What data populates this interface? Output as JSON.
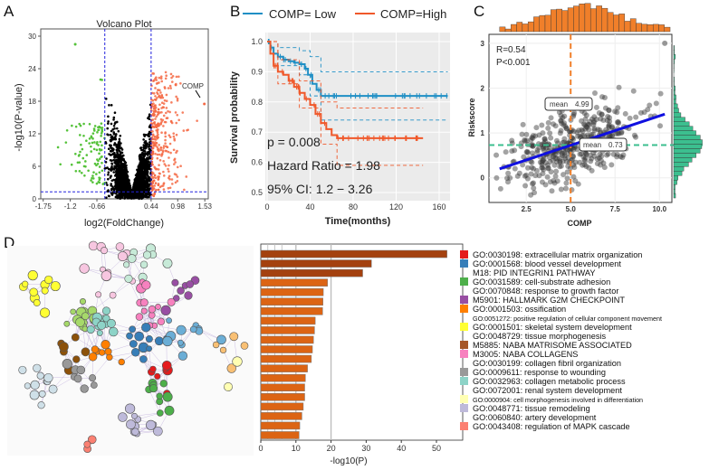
{
  "panels": {
    "A": "A",
    "B": "B",
    "C": "C",
    "D": "D"
  },
  "chart_data": [
    {
      "type": "scatter",
      "title": "Volcano Plot",
      "xlabel": "log2(FoldChange)",
      "ylabel": "-log10(P-value)",
      "xticks": [
        "-1.75",
        "-1.2",
        "-0.66",
        "0.44",
        "0.98",
        "1.53"
      ],
      "xtick_values": [
        -1.75,
        -1.2,
        -0.66,
        0.44,
        0.98,
        1.53
      ],
      "yticks": [
        "0",
        "6",
        "12",
        "18",
        "24",
        "30"
      ],
      "xlim": [
        -1.8,
        1.6
      ],
      "ylim": [
        0,
        30
      ],
      "thresholds": {
        "x": [
          -0.5,
          0.44
        ],
        "y": 1.3
      },
      "annotation": "COMP",
      "colors": {
        "down": "#55c23a",
        "ns": "#000000",
        "up": "#f46a45",
        "threshold": "#2222dd"
      }
    },
    {
      "type": "line",
      "xlabel": "Time(months)",
      "ylabel": "Survival probability",
      "xticks": [
        "0",
        "40",
        "80",
        "120",
        "160"
      ],
      "yticks": [
        "0.5",
        "0.6",
        "0.7",
        "0.8",
        "0.9",
        "1.0"
      ],
      "xlim": [
        0,
        168
      ],
      "ylim": [
        0.5,
        1.0
      ],
      "series": [
        {
          "name": "COMP= Low",
          "color": "#1f8fc5",
          "x": [
            0,
            3,
            6,
            10,
            15,
            20,
            25,
            30,
            35,
            38,
            42,
            46,
            50,
            168
          ],
          "y": [
            1.0,
            0.98,
            0.96,
            0.95,
            0.94,
            0.935,
            0.93,
            0.925,
            0.91,
            0.89,
            0.86,
            0.84,
            0.82,
            0.82
          ],
          "ci_upper": [
            [
              0,
              1.0
            ],
            [
              10,
              0.98
            ],
            [
              30,
              0.97
            ],
            [
              40,
              0.95
            ],
            [
              50,
              0.9
            ],
            [
              168,
              0.9
            ]
          ],
          "ci_lower": [
            [
              0,
              1.0
            ],
            [
              10,
              0.92
            ],
            [
              30,
              0.89
            ],
            [
              40,
              0.82
            ],
            [
              50,
              0.74
            ],
            [
              168,
              0.74
            ]
          ]
        },
        {
          "name": "COMP=High",
          "color": "#f0582a",
          "x": [
            0,
            3,
            6,
            10,
            15,
            20,
            25,
            30,
            35,
            40,
            45,
            50,
            55,
            60,
            65,
            145
          ],
          "y": [
            1.0,
            0.96,
            0.92,
            0.9,
            0.89,
            0.87,
            0.85,
            0.83,
            0.81,
            0.79,
            0.76,
            0.73,
            0.71,
            0.69,
            0.68,
            0.68
          ],
          "ci_upper": [
            [
              0,
              1.0
            ],
            [
              10,
              0.94
            ],
            [
              30,
              0.87
            ],
            [
              50,
              0.8
            ],
            [
              65,
              0.78
            ],
            [
              145,
              0.78
            ]
          ],
          "ci_lower": [
            [
              0,
              1.0
            ],
            [
              10,
              0.86
            ],
            [
              30,
              0.78
            ],
            [
              50,
              0.66
            ],
            [
              65,
              0.59
            ],
            [
              145,
              0.59
            ]
          ]
        }
      ],
      "annotations": [
        "p = 0.008",
        "Hazard Ratio = 1.98",
        "95% CI: 1.2 − 3.26"
      ]
    },
    {
      "type": "scatter",
      "xlabel": "COMP",
      "ylabel": "Riskscore",
      "xticks": [
        "2.5",
        "5.0",
        "7.5",
        "10.0"
      ],
      "yticks": [
        "0",
        "1",
        "2",
        "3"
      ],
      "xlim": [
        0.4,
        10.7
      ],
      "ylim": [
        -0.55,
        3.2
      ],
      "annotations": [
        "R=0.54",
        "P<0.001"
      ],
      "mean_x": {
        "label": "mean",
        "value": "4.99"
      },
      "mean_y": {
        "label": "mean",
        "value": "0.73"
      },
      "regression": {
        "x": [
          1,
          10.3
        ],
        "y": [
          0.2,
          1.42
        ],
        "color": "#1010e0"
      },
      "colors": {
        "points": "#333333",
        "top_hist": "#f07f2a",
        "right_hist": "#3cbf8f"
      }
    },
    {
      "type": "bar",
      "xlabel": "-log10(P)",
      "xticks": [
        "0",
        "10",
        "20",
        "30",
        "40",
        "50"
      ],
      "xlim": [
        0,
        55
      ],
      "values": [
        53,
        31.5,
        29,
        19,
        17.8,
        17.7,
        17.6,
        15.5,
        15.3,
        15,
        14.7,
        14.4,
        13.3,
        12.7,
        12.5,
        12.5,
        12.1,
        11.7,
        11.1,
        10.9
      ],
      "colors": {
        "top": "#a4410f",
        "rest": "#dc6414"
      },
      "legend": [
        {
          "label": "GO:0030198: extracellular matrix organization",
          "color": "#e41a1c"
        },
        {
          "label": "GO:0001568: blood vessel development",
          "color": "#377eb8"
        },
        {
          "label": "M18: PID INTEGRIN1 PATHWAY",
          "color": ""
        },
        {
          "label": "GO:0031589: cell-substrate adhesion",
          "color": "#4daf4a"
        },
        {
          "label": "GO:0070848: response to growth factor",
          "color": ""
        },
        {
          "label": "M5901: HALLMARK G2M CHECKPOINT",
          "color": "#984ea3"
        },
        {
          "label": "GO:0001503: ossification",
          "color": "#ff7f00"
        },
        {
          "label": "GO:0051272: positive regulation of cellular component movement",
          "color": ""
        },
        {
          "label": "GO:0001501: skeletal system development",
          "color": "#ffff33"
        },
        {
          "label": "GO:0048729: tissue morphogenesis",
          "color": ""
        },
        {
          "label": "M5885: NABA MATRISOME ASSOCIATED",
          "color": "#a65628"
        },
        {
          "label": "M3005: NABA COLLAGENS",
          "color": "#f781bf"
        },
        {
          "label": "GO:0030199: collagen fibril organization",
          "color": ""
        },
        {
          "label": "GO:0009611: response to wounding",
          "color": "#999999"
        },
        {
          "label": "GO:0032963: collagen metabolic process",
          "color": "#8dd3c7"
        },
        {
          "label": "GO:0072001: renal system development",
          "color": ""
        },
        {
          "label": "GO:0000904: cell morphogenesis involved in differentiation",
          "color": "#ffffb3"
        },
        {
          "label": "GO:0048771: tissue remodeling",
          "color": "#bebada"
        },
        {
          "label": "GO:0060840: artery development",
          "color": ""
        },
        {
          "label": "GO:0043408: regulation of MAPK cascade",
          "color": "#fb8072"
        }
      ]
    }
  ]
}
